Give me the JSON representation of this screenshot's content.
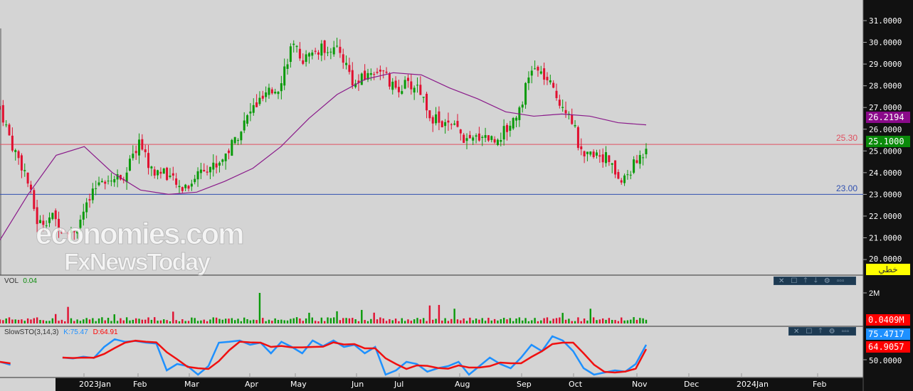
{
  "chart_data": {
    "type": "candlestick",
    "price_axis": {
      "min": 20,
      "max": 31,
      "ticks": [
        "31.0000",
        "30.0000",
        "29.0000",
        "28.0000",
        "27.0000",
        "26.0000",
        "25.0000",
        "24.0000",
        "23.0000",
        "22.0000",
        "21.0000",
        "20.0000"
      ]
    },
    "time_axis": [
      "2023Jan",
      "Feb",
      "Mar",
      "Apr",
      "May",
      "Jun",
      "Jul",
      "Aug",
      "Sep",
      "Oct",
      "Nov",
      "Dec",
      "2024Jan",
      "Feb"
    ],
    "closes": [
      27.0,
      25.2,
      24.0,
      21.6,
      22.0,
      21.4,
      21.4,
      22.6,
      23.8,
      23.7,
      24.0,
      25.5,
      24.0,
      24.1,
      23.3,
      23.5,
      24.3,
      24.3,
      25.0,
      26.0,
      27.0,
      27.5,
      28.0,
      29.8,
      29.2,
      29.6,
      29.8,
      29.4,
      28.0,
      28.5,
      28.8,
      27.9,
      28.0,
      28.0,
      26.6,
      26.2,
      26.0,
      25.3,
      25.8,
      25.5,
      26.0,
      27.0,
      28.8,
      28.4,
      27.4,
      26.8,
      24.5,
      25.0,
      24.6,
      23.5,
      24.3,
      25.1
    ],
    "moving_average": [
      20.9,
      23.0,
      24.8,
      25.2,
      24.0,
      23.2,
      23.0,
      23.1,
      23.6,
      24.2,
      25.2,
      26.5,
      27.6,
      28.3,
      28.6,
      28.5,
      27.9,
      27.4,
      26.8,
      26.6,
      26.7,
      26.6,
      26.3,
      26.2
    ],
    "hlines": [
      {
        "value": 25.3,
        "label": "25.30",
        "color": "#e05060"
      },
      {
        "value": 23.0,
        "label": "23.00",
        "color": "#3050b0"
      }
    ],
    "last_ma": "26.2194",
    "last_price": "25.1000",
    "volume": {
      "label": "VOL",
      "value": "0.04",
      "axis": "2M",
      "last": "0.0409M"
    },
    "stoch": {
      "label": "SlowSTO(3,14,3)",
      "k_label": "K:75.47",
      "d_label": "D:64.91",
      "k_last": "75.4717",
      "d_last": "64.9057",
      "axis": "50.0000",
      "k": [
        35,
        28,
        null,
        null,
        null,
        null,
        45,
        43,
        47,
        44,
        70,
        88,
        82,
        84,
        80,
        78,
        15,
        30,
        25,
        5,
        25,
        80,
        82,
        85,
        75,
        80,
        55,
        82,
        70,
        55,
        85,
        72,
        85,
        70,
        75,
        55,
        70,
        5,
        15,
        35,
        30,
        12,
        20,
        25,
        35,
        5,
        25,
        45,
        30,
        20,
        45,
        75,
        60,
        95,
        85,
        60,
        20,
        5,
        10,
        15,
        12,
        30,
        75
      ]
    },
    "indicator_tag": "خطي",
    "watermark": [
      "economies.com",
      "FxNewsToday"
    ]
  }
}
